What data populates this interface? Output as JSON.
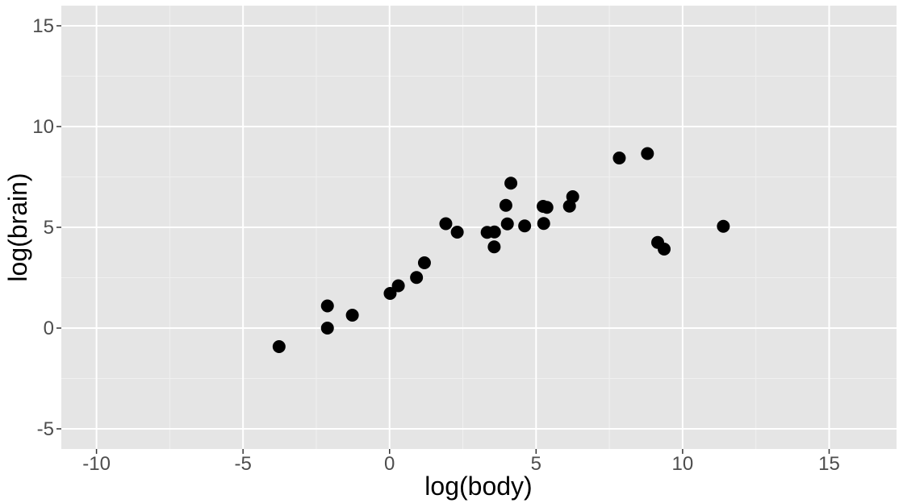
{
  "chart_data": {
    "type": "scatter",
    "title": "",
    "xlabel": "log(body)",
    "ylabel": "log(brain)",
    "xlim": [
      -11.2,
      17.3
    ],
    "ylim": [
      -6,
      16
    ],
    "x_ticks": [
      -10,
      -5,
      0,
      5,
      10,
      15
    ],
    "y_ticks": [
      -5,
      0,
      5,
      10,
      15
    ],
    "grid": true,
    "legend": "none",
    "colors": {
      "panel": "#e5e5e5",
      "grid_major": "#ffffff",
      "grid_minor": "#f0f0f0",
      "point": "#000000",
      "tick": "#333333"
    },
    "points": [
      {
        "x": -3.77,
        "y": -0.92
      },
      {
        "x": -2.12,
        "y": 0.0
      },
      {
        "x": -2.12,
        "y": 1.1
      },
      {
        "x": -1.27,
        "y": 0.64
      },
      {
        "x": 0.02,
        "y": 1.72
      },
      {
        "x": 0.3,
        "y": 2.1
      },
      {
        "x": 0.92,
        "y": 2.51
      },
      {
        "x": 1.19,
        "y": 3.24
      },
      {
        "x": 1.92,
        "y": 5.18
      },
      {
        "x": 2.31,
        "y": 4.76
      },
      {
        "x": 3.33,
        "y": 4.75
      },
      {
        "x": 3.58,
        "y": 4.77
      },
      {
        "x": 3.57,
        "y": 4.03
      },
      {
        "x": 3.97,
        "y": 6.09
      },
      {
        "x": 4.02,
        "y": 5.17
      },
      {
        "x": 4.14,
        "y": 7.19
      },
      {
        "x": 4.61,
        "y": 5.07
      },
      {
        "x": 5.24,
        "y": 6.04
      },
      {
        "x": 5.37,
        "y": 5.99
      },
      {
        "x": 5.26,
        "y": 5.19
      },
      {
        "x": 6.14,
        "y": 6.05
      },
      {
        "x": 6.25,
        "y": 6.52
      },
      {
        "x": 7.84,
        "y": 8.44
      },
      {
        "x": 8.8,
        "y": 8.66
      },
      {
        "x": 9.15,
        "y": 4.25
      },
      {
        "x": 9.37,
        "y": 3.92
      },
      {
        "x": 11.39,
        "y": 5.05
      }
    ]
  }
}
